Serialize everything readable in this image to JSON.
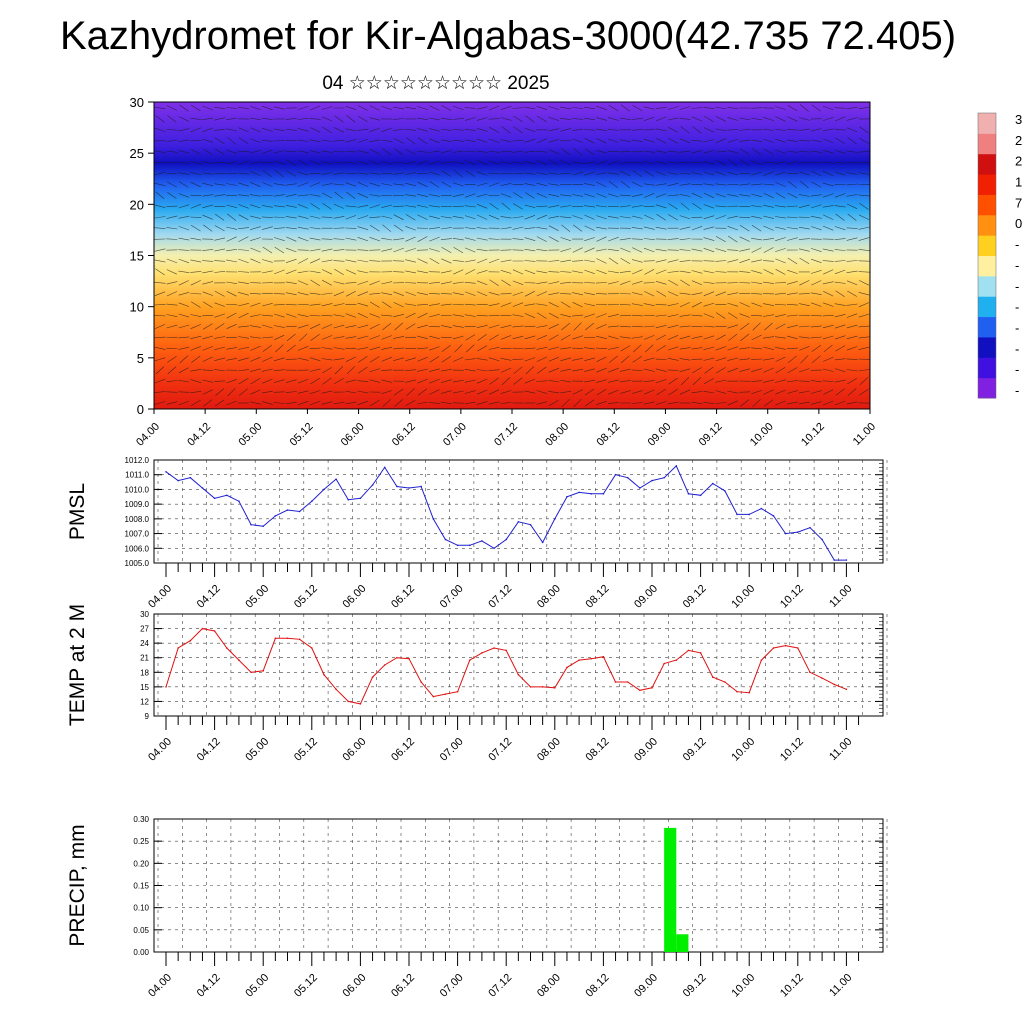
{
  "title": "Kazhydromet for Kir-Algabas-3000(42.735 72.405)",
  "subtitle": "04 ☆☆☆☆☆☆☆☆☆ 2025",
  "time_labels": [
    "04.00",
    "04.12",
    "05.00",
    "05.12",
    "06.00",
    "06.12",
    "07.00",
    "07.12",
    "08.00",
    "08.12",
    "09.00",
    "09.12",
    "10.00",
    "10.12",
    "11.00"
  ],
  "colors": {
    "pmsl_line": "#1f1fd0",
    "temp_line": "#e01010",
    "precip_bar": "#00ee00"
  },
  "chart_data": [
    {
      "id": "cross-section",
      "type": "heatmap",
      "ylim": [
        0,
        30
      ],
      "yticks": [
        0,
        5,
        10,
        15,
        20,
        25,
        30
      ],
      "colorbar_labels": [
        "3",
        "2",
        "2",
        "1",
        "7",
        "0",
        "-",
        "-",
        "-",
        "-",
        "-",
        "-",
        "-",
        "-"
      ],
      "color_scale": [
        "#8020e0",
        "#4010e0",
        "#1010c0",
        "#2060f0",
        "#20b0f0",
        "#a0e0f0",
        "#fff0a0",
        "#ffd020",
        "#ff9010",
        "#ff5000",
        "#f02000",
        "#d01010",
        "#f08080",
        "#f0b0b0"
      ]
    },
    {
      "id": "pmsl",
      "type": "line",
      "ylabel": "PMSL",
      "ylim": [
        1005.0,
        1012.0
      ],
      "yticks": [
        "1005.0",
        "1006.0",
        "1007.0",
        "1008.0",
        "1009.0",
        "1010.0",
        "1011.0",
        "1012.0"
      ],
      "x": [
        0,
        3,
        6,
        9,
        12,
        15,
        18,
        21,
        24,
        27,
        30,
        33,
        36,
        39,
        42,
        45,
        48,
        51,
        54,
        57,
        60,
        63,
        66,
        69,
        72,
        75,
        78,
        81,
        84,
        87,
        90,
        93,
        96,
        99,
        102,
        105,
        108,
        111,
        114,
        117,
        120,
        123,
        126,
        129,
        132,
        135,
        138,
        141,
        144,
        147,
        150,
        153,
        156,
        159,
        162,
        165,
        168
      ],
      "values": [
        1011.2,
        1010.6,
        1010.8,
        1010.1,
        1009.4,
        1009.6,
        1009.2,
        1007.6,
        1007.5,
        1008.2,
        1008.6,
        1008.5,
        1009.2,
        1010.0,
        1010.7,
        1009.3,
        1009.4,
        1010.3,
        1011.5,
        1010.2,
        1010.1,
        1010.2,
        1008.0,
        1006.6,
        1006.2,
        1006.2,
        1006.5,
        1006.0,
        1006.6,
        1007.8,
        1007.6,
        1006.4,
        1008.0,
        1009.5,
        1009.8,
        1009.7,
        1009.7,
        1011.0,
        1010.8,
        1010.1,
        1010.6,
        1010.8,
        1011.6,
        1009.7,
        1009.6,
        1010.4,
        1009.9,
        1008.3,
        1008.3,
        1008.7,
        1008.2,
        1007.0,
        1007.1,
        1007.4,
        1006.6,
        1005.2,
        1005.2
      ],
      "xtick_labels": [
        "04.00",
        "04.12",
        "05.00",
        "05.12",
        "06.00",
        "06.12",
        "07.00",
        "07.12",
        "08.00",
        "08.12",
        "09.00",
        "09.12",
        "10.00",
        "10.12",
        "11.00"
      ]
    },
    {
      "id": "temp",
      "type": "line",
      "ylabel": "TEMP at 2 M",
      "ylim": [
        9,
        30
      ],
      "yticks": [
        "9",
        "12",
        "15",
        "18",
        "21",
        "24",
        "27",
        "30"
      ],
      "x": [
        0,
        3,
        6,
        9,
        12,
        15,
        18,
        21,
        24,
        27,
        30,
        33,
        36,
        39,
        42,
        45,
        48,
        51,
        54,
        57,
        60,
        63,
        66,
        69,
        72,
        75,
        78,
        81,
        84,
        87,
        90,
        93,
        96,
        99,
        102,
        105,
        108,
        111,
        114,
        117,
        120,
        123,
        126,
        129,
        132,
        135,
        138,
        141,
        144,
        147,
        150,
        153,
        156,
        159,
        162,
        165,
        168
      ],
      "values": [
        15,
        23,
        24.5,
        27,
        26.5,
        23,
        20.5,
        18,
        18.3,
        25,
        25,
        24.8,
        23,
        17.5,
        14.5,
        12,
        11.5,
        17,
        19.5,
        21,
        20.8,
        16,
        13,
        13.5,
        14,
        20.5,
        22,
        23,
        22.5,
        17.5,
        15,
        15,
        14.8,
        19,
        20.5,
        20.8,
        21.2,
        16,
        16,
        14.3,
        14.8,
        19.8,
        20.5,
        22.5,
        22,
        17,
        16,
        14,
        13.8,
        20.5,
        23,
        23.5,
        23,
        18,
        16.8,
        15.5,
        14.5
      ],
      "xtick_labels": [
        "04.00",
        "04.12",
        "05.00",
        "05.12",
        "06.00",
        "06.12",
        "07.00",
        "07.12",
        "08.00",
        "08.12",
        "09.00",
        "09.12",
        "10.00",
        "10.12",
        "11.00"
      ]
    },
    {
      "id": "precip",
      "type": "bar",
      "ylabel": "PRECIP, mm",
      "ylim": [
        0,
        0.3
      ],
      "yticks": [
        "0.00",
        "0.05",
        "0.10",
        "0.15",
        "0.20",
        "0.25",
        "0.30"
      ],
      "bars": [
        {
          "x0": 123,
          "x1": 126,
          "value": 0.28
        },
        {
          "x0": 126,
          "x1": 129,
          "value": 0.04
        }
      ],
      "xtick_labels": [
        "04.00",
        "04.12",
        "05.00",
        "05.12",
        "06.00",
        "06.12",
        "07.00",
        "07.12",
        "08.00",
        "08.12",
        "09.00",
        "09.12",
        "10.00",
        "10.12",
        "11.00"
      ]
    }
  ]
}
